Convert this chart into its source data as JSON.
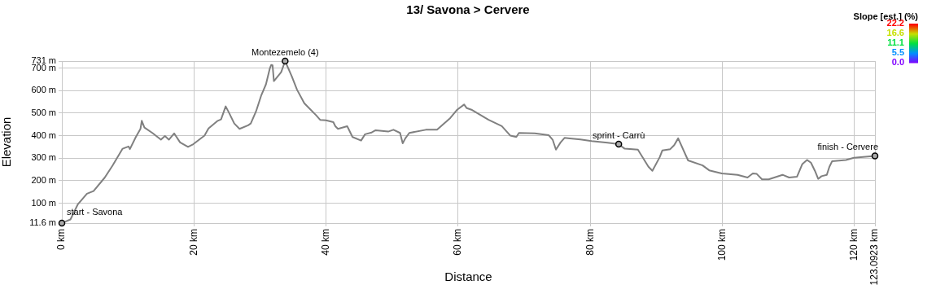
{
  "chart_data": {
    "type": "line",
    "title": "13/ Savona > Cervere",
    "xlabel": "Distance",
    "ylabel": "Elevation",
    "clabel": "Slope [est.] (%)",
    "clim": [
      0,
      22.2
    ],
    "cticks": [
      {
        "value": 0,
        "label": "0.0"
      },
      5.5,
      11.1,
      16.6,
      22.2
    ],
    "xlim": [
      0,
      123.0923
    ],
    "xticks": [
      {
        "value": 0,
        "label": "0 km"
      },
      {
        "value": 20,
        "label": "20 km"
      },
      {
        "value": 40,
        "label": "40 km"
      },
      {
        "value": 60,
        "label": "60 km"
      },
      {
        "value": 80,
        "label": "80 km"
      },
      {
        "value": 100,
        "label": "100 km"
      },
      {
        "value": 120,
        "label": "120 km"
      },
      {
        "value": 123.0923,
        "label": "123.0923 km"
      }
    ],
    "ylim": [
      11.6,
      731
    ],
    "yticks": [
      {
        "value": 11.6,
        "label": "11.6 m"
      },
      {
        "value": 100,
        "label": "100 m"
      },
      {
        "value": 200,
        "label": "200 m"
      },
      {
        "value": 300,
        "label": "300 m"
      },
      {
        "value": 400,
        "label": "400 m"
      },
      {
        "value": 500,
        "label": "500 m"
      },
      {
        "value": 600,
        "label": "600 m"
      },
      {
        "value": 700,
        "label": "700 m"
      },
      {
        "value": 731,
        "label": "731 m"
      }
    ],
    "grid": true,
    "legend": false,
    "marker": "none",
    "line_style": "solid",
    "series": [
      {
        "color": "#808080",
        "x": [
          0,
          1.3,
          2.4,
          3.8,
          4.8,
          6.5,
          7.7,
          9.2,
          10.1,
          10.3,
          11.2,
          11.9,
          12.1,
          12.5,
          13.7,
          15.0,
          15.6,
          16.2,
          17.0,
          17.9,
          19.1,
          19.9,
          21.6,
          22.2,
          23.6,
          24.1,
          24.8,
          25.3,
          26.1,
          26.9,
          28.2,
          28.6,
          29.4,
          30.2,
          30.9,
          31.5,
          31.7,
          31.9,
          32.1,
          33.2,
          33.8,
          34.8,
          35.6,
          36.7,
          37.3,
          38.5,
          39.1,
          40.0,
          41.1,
          41.4,
          41.8,
          43.2,
          44.0,
          45.3,
          45.9,
          46.9,
          47.5,
          49.4,
          50.2,
          51.2,
          51.6,
          52.0,
          52.6,
          55.1,
          56.8,
          58.8,
          59.8,
          60.9,
          61.3,
          62.1,
          64.6,
          66.6,
          67.9,
          68.8,
          69.2,
          71.6,
          73.7,
          74.3,
          74.8,
          75.5,
          76.1,
          76.9,
          78.5,
          80.2,
          82.6,
          84.3,
          85.2,
          87.2,
          88.8,
          89.4,
          90.5,
          90.9,
          92.1,
          92.7,
          93.3,
          94.8,
          97.0,
          98.0,
          99.9,
          102.3,
          103.8,
          104.6,
          105.2,
          106.0,
          107.0,
          109.1,
          110.1,
          111.3,
          112.1,
          112.8,
          113.4,
          114.0,
          114.5,
          115.0,
          115.8,
          116.2,
          116.6,
          118.7,
          119.9,
          123.0923
        ],
        "values": [
          11.6,
          28,
          94,
          142,
          154,
          214,
          268,
          342,
          352,
          340,
          394,
          430,
          466,
          436,
          412,
          382,
          398,
          382,
          410,
          370,
          350,
          362,
          400,
          432,
          466,
          472,
          530,
          502,
          454,
          430,
          446,
          454,
          508,
          580,
          628,
          700,
          714,
          712,
          642,
          682,
          731,
          664,
          604,
          544,
          526,
          490,
          470,
          468,
          460,
          442,
          430,
          442,
          394,
          378,
          406,
          414,
          424,
          418,
          426,
          412,
          366,
          388,
          412,
          426,
          426,
          478,
          514,
          538,
          522,
          514,
          470,
          442,
          400,
          394,
          412,
          410,
          402,
          382,
          338,
          370,
          390,
          388,
          383,
          376,
          369,
          362,
          342,
          338,
          262,
          244,
          304,
          334,
          340,
          358,
          388,
          290,
          268,
          246,
          232,
          226,
          214,
          232,
          230,
          206,
          206,
          226,
          214,
          218,
          274,
          292,
          280,
          244,
          208,
          220,
          226,
          262,
          286,
          292,
          302,
          310
        ]
      }
    ],
    "annotations": [
      {
        "text": "start - Savona",
        "x": 0,
        "y": 11.6
      },
      {
        "text": "Montezemelo (4)",
        "x": 33.8,
        "y": 731
      },
      {
        "text": "sprint - Carrù",
        "x": 84.3,
        "y": 362
      },
      {
        "text": "finish - Cervere",
        "x": 123.0923,
        "y": 310
      }
    ]
  }
}
